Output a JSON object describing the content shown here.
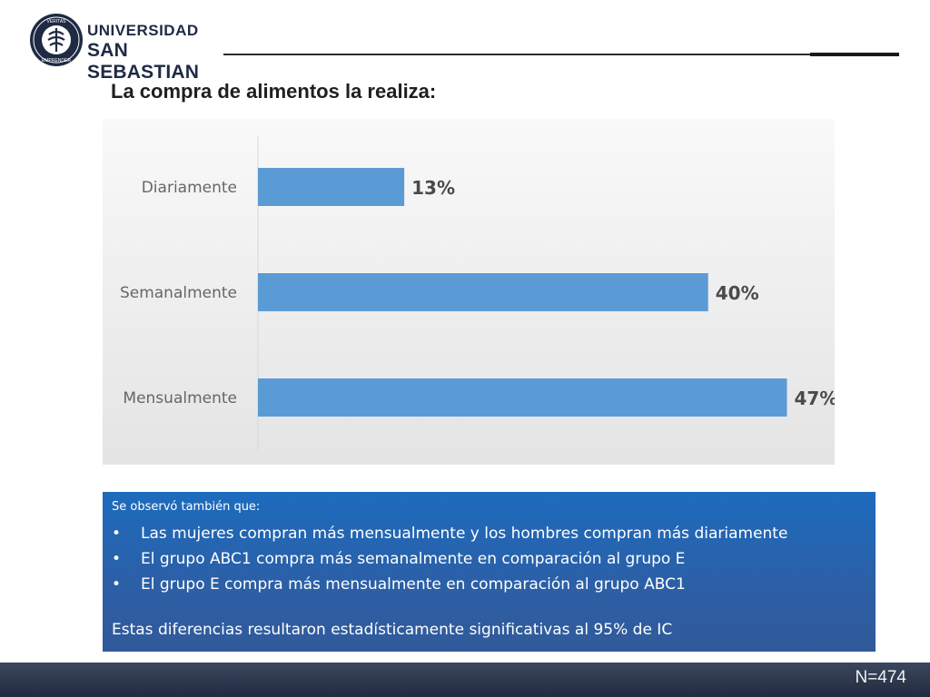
{
  "header": {
    "logo_line1": "UNIVERSIDAD",
    "logo_line2": "SAN SEBASTIAN",
    "seal_text_top": "VERITAS",
    "seal_text_bottom": "EMPRENDER"
  },
  "slide": {
    "title": "La compra de alimentos la realiza:"
  },
  "chart_data": {
    "type": "bar",
    "orientation": "horizontal",
    "categories": [
      "Diariamente",
      "Semanalmente",
      "Mensualmente"
    ],
    "values": [
      13,
      40,
      47
    ],
    "value_labels": [
      "13%",
      "40%",
      "47%"
    ],
    "unit": "%",
    "xlim": [
      0,
      50
    ],
    "grid": false,
    "bar_color": "#5b9bd5",
    "label_color": "#4a4a4a",
    "category_color": "#666666"
  },
  "notes": {
    "intro": "Se observó también que:",
    "bullet_char": "•",
    "items": [
      "Las mujeres compran más mensualmente y los hombres compran más diariamente",
      "El grupo ABC1 compra más semanalmente en comparación al grupo E",
      "El grupo E compra más mensualmente en comparación al grupo ABC1"
    ],
    "conclusion": "Estas diferencias resultaron estadísticamente significativas al 95% de IC"
  },
  "footer": {
    "sample_size": "N=474"
  }
}
